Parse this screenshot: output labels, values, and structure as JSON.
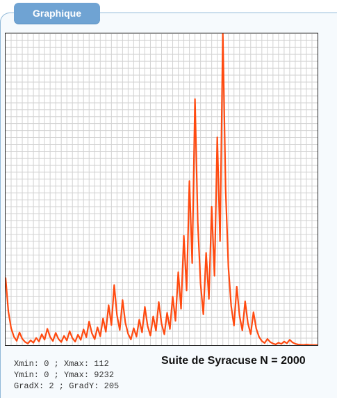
{
  "tab": {
    "label": "Graphique"
  },
  "params": {
    "line1": "Xmin: 0 ; Xmax: 112",
    "line2": "Ymin: 0 ; Ymax: 9232",
    "line3": "GradX: 2 ; GradY: 205"
  },
  "colors": {
    "series": "#ff4a10",
    "grid": "#d2d2d2",
    "frame": "#222222",
    "tab": "#6fa3d3"
  },
  "chart_data": {
    "type": "line",
    "title": "Suite de Syracuse N = 2000",
    "xlabel": "",
    "ylabel": "",
    "xlim": [
      0,
      112
    ],
    "ylim": [
      0,
      9232
    ],
    "x_grad": 2,
    "y_grad": 205,
    "grid": true,
    "x": [
      0,
      1,
      2,
      3,
      4,
      5,
      6,
      7,
      8,
      9,
      10,
      11,
      12,
      13,
      14,
      15,
      16,
      17,
      18,
      19,
      20,
      21,
      22,
      23,
      24,
      25,
      26,
      27,
      28,
      29,
      30,
      31,
      32,
      33,
      34,
      35,
      36,
      37,
      38,
      39,
      40,
      41,
      42,
      43,
      44,
      45,
      46,
      47,
      48,
      49,
      50,
      51,
      52,
      53,
      54,
      55,
      56,
      57,
      58,
      59,
      60,
      61,
      62,
      63,
      64,
      65,
      66,
      67,
      68,
      69,
      70,
      71,
      72,
      73,
      74,
      75,
      76,
      77,
      78,
      79,
      80,
      81,
      82,
      83,
      84,
      85,
      86,
      87,
      88,
      89,
      90,
      91,
      92,
      93,
      94,
      95,
      96,
      97,
      98,
      99,
      100,
      101,
      102,
      103,
      104,
      105,
      106,
      107,
      108,
      109,
      110,
      111,
      112
    ],
    "values": [
      2000,
      1000,
      500,
      250,
      125,
      376,
      188,
      94,
      47,
      142,
      71,
      214,
      107,
      322,
      161,
      484,
      242,
      121,
      364,
      182,
      91,
      274,
      137,
      412,
      206,
      103,
      310,
      155,
      466,
      233,
      700,
      350,
      175,
      526,
      263,
      790,
      395,
      1186,
      593,
      1780,
      890,
      445,
      1336,
      668,
      334,
      167,
      502,
      251,
      754,
      377,
      1132,
      566,
      283,
      850,
      425,
      1276,
      638,
      319,
      958,
      479,
      1438,
      719,
      2158,
      1079,
      3238,
      1619,
      4858,
      2429,
      7288,
      3644,
      1822,
      911,
      2734,
      1367,
      4102,
      2051,
      6154,
      3077,
      9232,
      4616,
      2308,
      1154,
      577,
      1732,
      866,
      433,
      1300,
      650,
      325,
      976,
      488,
      244,
      122,
      61,
      184,
      92,
      46,
      23,
      70,
      35,
      106,
      53,
      160,
      80,
      40,
      20,
      10,
      5,
      16,
      8,
      4,
      2,
      1
    ]
  }
}
